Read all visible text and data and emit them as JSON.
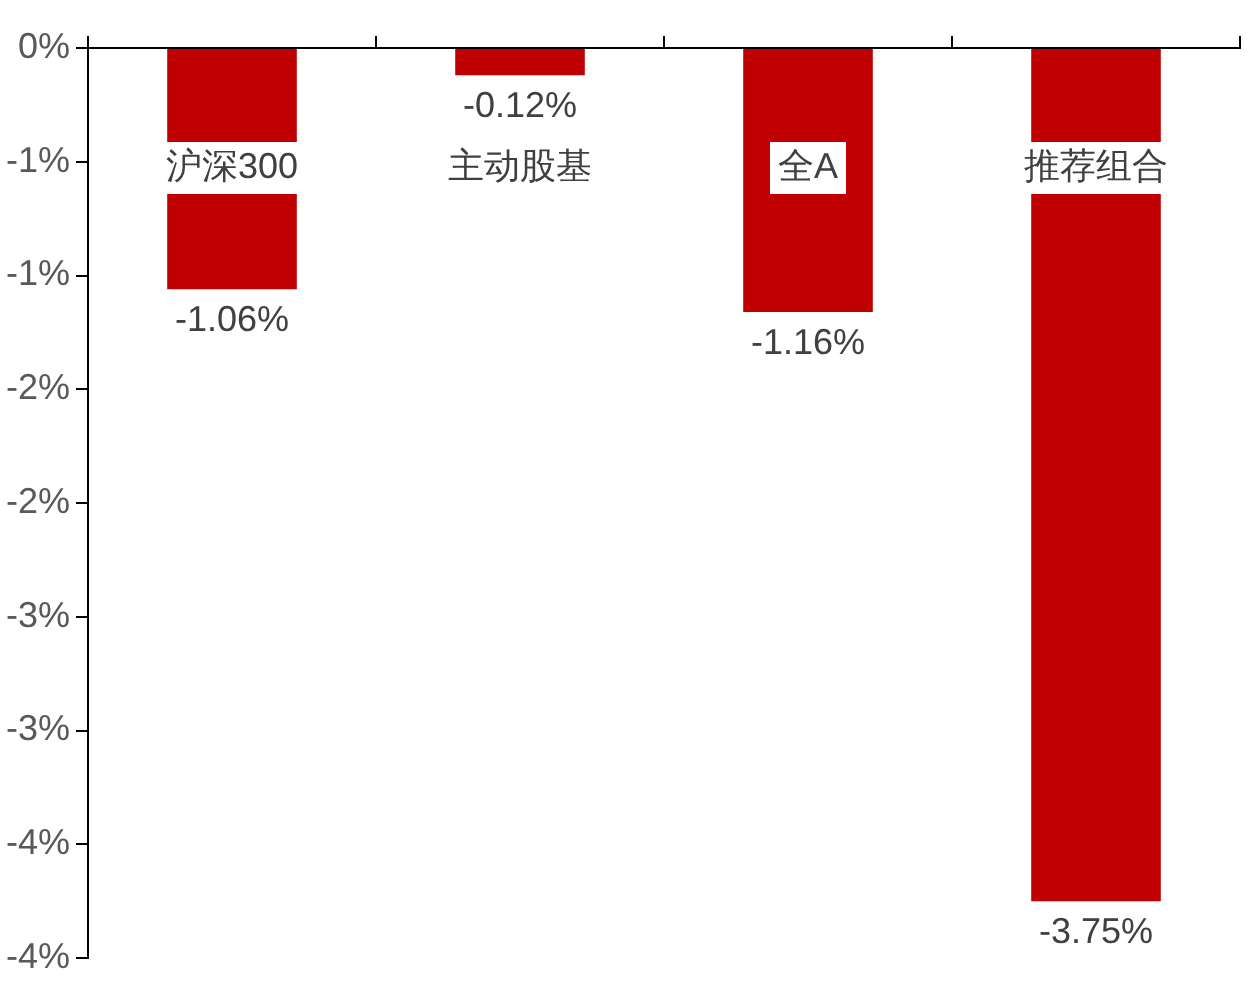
{
  "chart_data": {
    "type": "bar",
    "categories": [
      "沪深300",
      "主动股基",
      "全A",
      "推荐组合"
    ],
    "values": [
      -1.06,
      -0.12,
      -1.16,
      -3.75
    ],
    "color": "#c00000",
    "ylim": [
      -4,
      0
    ],
    "yticks": [
      {
        "value": 0,
        "label": "0%"
      },
      {
        "value": -0.5,
        "label": "-1%"
      },
      {
        "value": -1,
        "label": "-1%"
      },
      {
        "value": -1.5,
        "label": "-2%"
      },
      {
        "value": -2,
        "label": "-2%"
      },
      {
        "value": -2.5,
        "label": "-3%"
      },
      {
        "value": -3,
        "label": "-3%"
      },
      {
        "value": -3.5,
        "label": "-4%"
      },
      {
        "value": -4,
        "label": "-4%"
      }
    ],
    "value_labels": [
      "-1.06%",
      "-0.12%",
      "-1.16%",
      "-3.75%"
    ],
    "grid": false
  }
}
